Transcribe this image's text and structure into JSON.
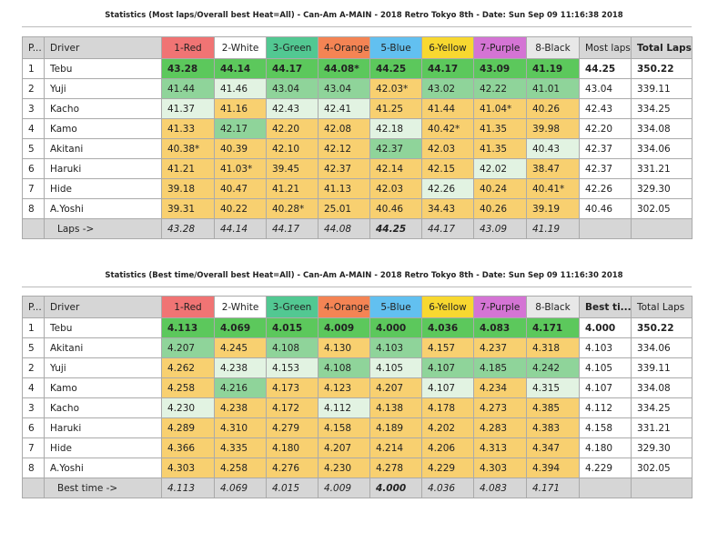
{
  "columns": [
    "1-Red",
    "2-White",
    "3-Green",
    "4-Orange",
    "5-Blue",
    "6-Yellow",
    "7-Purple",
    "8-Black"
  ],
  "column_colors": [
    "#f07474",
    "#ffffff",
    "#52c892",
    "#f48454",
    "#62c0f0",
    "#f8d830",
    "#d474d4",
    "#e8e8e8"
  ],
  "cell_colors": {
    "g": "#5cc85c",
    "m": "#8fd49a",
    "l": "#e2f3e2",
    "y": "#f8d070"
  },
  "tables": [
    {
      "title": "Statistics (Most laps/Overall best Heat=All) - Can-Am A-MAIN - 2018 Retro Tokyo 8th - Date: Sun Sep 09 11:16:38 2018",
      "pos_header": "P...",
      "driver_header": "Driver",
      "best_header": "Most laps",
      "total_header": "Total Laps",
      "total_bold": true,
      "best_bold": false,
      "rows": [
        {
          "pos": "1",
          "driver": "Tebu",
          "cells": [
            [
              "43.28",
              "g"
            ],
            [
              "44.14",
              "g"
            ],
            [
              "44.17",
              "g"
            ],
            [
              "44.08*",
              "g"
            ],
            [
              "44.25",
              "g"
            ],
            [
              "44.17",
              "g"
            ],
            [
              "43.09",
              "g"
            ],
            [
              "41.19",
              "g"
            ]
          ],
          "best": "44.25",
          "total": "350.22",
          "bold": true
        },
        {
          "pos": "2",
          "driver": "Yuji",
          "cells": [
            [
              "41.44",
              "m"
            ],
            [
              "41.46",
              "l"
            ],
            [
              "43.04",
              "m"
            ],
            [
              "43.04",
              "m"
            ],
            [
              "42.03*",
              "y"
            ],
            [
              "43.02",
              "m"
            ],
            [
              "42.22",
              "m"
            ],
            [
              "41.01",
              "m"
            ]
          ],
          "best": "43.04",
          "total": "339.11"
        },
        {
          "pos": "3",
          "driver": "Kacho",
          "cells": [
            [
              "41.37",
              "l"
            ],
            [
              "41.16",
              "y"
            ],
            [
              "42.43",
              "l"
            ],
            [
              "42.41",
              "l"
            ],
            [
              "41.25",
              "y"
            ],
            [
              "41.44",
              "y"
            ],
            [
              "41.04*",
              "y"
            ],
            [
              "40.26",
              "y"
            ]
          ],
          "best": "42.43",
          "total": "334.25"
        },
        {
          "pos": "4",
          "driver": "Kamo",
          "cells": [
            [
              "41.33",
              "y"
            ],
            [
              "42.17",
              "m"
            ],
            [
              "42.20",
              "y"
            ],
            [
              "42.08",
              "y"
            ],
            [
              "42.18",
              "l"
            ],
            [
              "40.42*",
              "y"
            ],
            [
              "41.35",
              "y"
            ],
            [
              "39.98",
              "y"
            ]
          ],
          "best": "42.20",
          "total": "334.08"
        },
        {
          "pos": "5",
          "driver": "Akitani",
          "cells": [
            [
              "40.38*",
              "y"
            ],
            [
              "40.39",
              "y"
            ],
            [
              "42.10",
              "y"
            ],
            [
              "42.12",
              "y"
            ],
            [
              "42.37",
              "m"
            ],
            [
              "42.03",
              "y"
            ],
            [
              "41.35",
              "y"
            ],
            [
              "40.43",
              "l"
            ]
          ],
          "best": "42.37",
          "total": "334.06"
        },
        {
          "pos": "6",
          "driver": "Haruki",
          "cells": [
            [
              "41.21",
              "y"
            ],
            [
              "41.03*",
              "y"
            ],
            [
              "39.45",
              "y"
            ],
            [
              "42.37",
              "y"
            ],
            [
              "42.14",
              "y"
            ],
            [
              "42.15",
              "y"
            ],
            [
              "42.02",
              "l"
            ],
            [
              "38.47",
              "y"
            ]
          ],
          "best": "42.37",
          "total": "331.21"
        },
        {
          "pos": "7",
          "driver": "Hide",
          "cells": [
            [
              "39.18",
              "y"
            ],
            [
              "40.47",
              "y"
            ],
            [
              "41.21",
              "y"
            ],
            [
              "41.13",
              "y"
            ],
            [
              "42.03",
              "y"
            ],
            [
              "42.26",
              "l"
            ],
            [
              "40.24",
              "y"
            ],
            [
              "40.41*",
              "y"
            ]
          ],
          "best": "42.26",
          "total": "329.30"
        },
        {
          "pos": "8",
          "driver": "A.Yoshi",
          "cells": [
            [
              "39.31",
              "y"
            ],
            [
              "40.22",
              "y"
            ],
            [
              "40.28*",
              "y"
            ],
            [
              "25.01",
              "y"
            ],
            [
              "40.46",
              "y"
            ],
            [
              "34.43",
              "y"
            ],
            [
              "40.26",
              "y"
            ],
            [
              "39.19",
              "y"
            ]
          ],
          "best": "40.46",
          "total": "302.05"
        }
      ],
      "footer_label": "Laps ->",
      "footer": [
        "43.28",
        "44.14",
        "44.17",
        "44.08",
        "44.25",
        "44.17",
        "43.09",
        "41.19"
      ],
      "footer_bold_index": 4
    },
    {
      "title": "Statistics (Best time/Overall best Heat=All) - Can-Am A-MAIN - 2018 Retro Tokyo 8th - Date: Sun Sep 09 11:16:30 2018",
      "pos_header": "P...",
      "driver_header": "Driver",
      "best_header": "Best ti...",
      "total_header": "Total Laps",
      "total_bold": false,
      "best_bold": true,
      "rows": [
        {
          "pos": "1",
          "driver": "Tebu",
          "cells": [
            [
              "4.113",
              "g"
            ],
            [
              "4.069",
              "g"
            ],
            [
              "4.015",
              "g"
            ],
            [
              "4.009",
              "g"
            ],
            [
              "4.000",
              "g"
            ],
            [
              "4.036",
              "g"
            ],
            [
              "4.083",
              "g"
            ],
            [
              "4.171",
              "g"
            ]
          ],
          "best": "4.000",
          "total": "350.22",
          "bold": true
        },
        {
          "pos": "5",
          "driver": "Akitani",
          "cells": [
            [
              "4.207",
              "m"
            ],
            [
              "4.245",
              "y"
            ],
            [
              "4.108",
              "m"
            ],
            [
              "4.130",
              "y"
            ],
            [
              "4.103",
              "m"
            ],
            [
              "4.157",
              "y"
            ],
            [
              "4.237",
              "y"
            ],
            [
              "4.318",
              "y"
            ]
          ],
          "best": "4.103",
          "total": "334.06"
        },
        {
          "pos": "2",
          "driver": "Yuji",
          "cells": [
            [
              "4.262",
              "y"
            ],
            [
              "4.238",
              "l"
            ],
            [
              "4.153",
              "l"
            ],
            [
              "4.108",
              "m"
            ],
            [
              "4.105",
              "l"
            ],
            [
              "4.107",
              "m"
            ],
            [
              "4.185",
              "m"
            ],
            [
              "4.242",
              "m"
            ]
          ],
          "best": "4.105",
          "total": "339.11"
        },
        {
          "pos": "4",
          "driver": "Kamo",
          "cells": [
            [
              "4.258",
              "y"
            ],
            [
              "4.216",
              "m"
            ],
            [
              "4.173",
              "y"
            ],
            [
              "4.123",
              "y"
            ],
            [
              "4.207",
              "y"
            ],
            [
              "4.107",
              "l"
            ],
            [
              "4.234",
              "y"
            ],
            [
              "4.315",
              "l"
            ]
          ],
          "best": "4.107",
          "total": "334.08"
        },
        {
          "pos": "3",
          "driver": "Kacho",
          "cells": [
            [
              "4.230",
              "l"
            ],
            [
              "4.238",
              "y"
            ],
            [
              "4.172",
              "y"
            ],
            [
              "4.112",
              "l"
            ],
            [
              "4.138",
              "y"
            ],
            [
              "4.178",
              "y"
            ],
            [
              "4.273",
              "y"
            ],
            [
              "4.385",
              "y"
            ]
          ],
          "best": "4.112",
          "total": "334.25"
        },
        {
          "pos": "6",
          "driver": "Haruki",
          "cells": [
            [
              "4.289",
              "y"
            ],
            [
              "4.310",
              "y"
            ],
            [
              "4.279",
              "y"
            ],
            [
              "4.158",
              "y"
            ],
            [
              "4.189",
              "y"
            ],
            [
              "4.202",
              "y"
            ],
            [
              "4.283",
              "y"
            ],
            [
              "4.383",
              "y"
            ]
          ],
          "best": "4.158",
          "total": "331.21"
        },
        {
          "pos": "7",
          "driver": "Hide",
          "cells": [
            [
              "4.366",
              "y"
            ],
            [
              "4.335",
              "y"
            ],
            [
              "4.180",
              "y"
            ],
            [
              "4.207",
              "y"
            ],
            [
              "4.214",
              "y"
            ],
            [
              "4.206",
              "y"
            ],
            [
              "4.313",
              "y"
            ],
            [
              "4.347",
              "y"
            ]
          ],
          "best": "4.180",
          "total": "329.30"
        },
        {
          "pos": "8",
          "driver": "A.Yoshi",
          "cells": [
            [
              "4.303",
              "y"
            ],
            [
              "4.258",
              "y"
            ],
            [
              "4.276",
              "y"
            ],
            [
              "4.230",
              "y"
            ],
            [
              "4.278",
              "y"
            ],
            [
              "4.229",
              "y"
            ],
            [
              "4.303",
              "y"
            ],
            [
              "4.394",
              "y"
            ]
          ],
          "best": "4.229",
          "total": "302.05"
        }
      ],
      "footer_label": "Best time ->",
      "footer": [
        "4.113",
        "4.069",
        "4.015",
        "4.009",
        "4.000",
        "4.036",
        "4.083",
        "4.171"
      ],
      "footer_bold_index": 4
    }
  ]
}
